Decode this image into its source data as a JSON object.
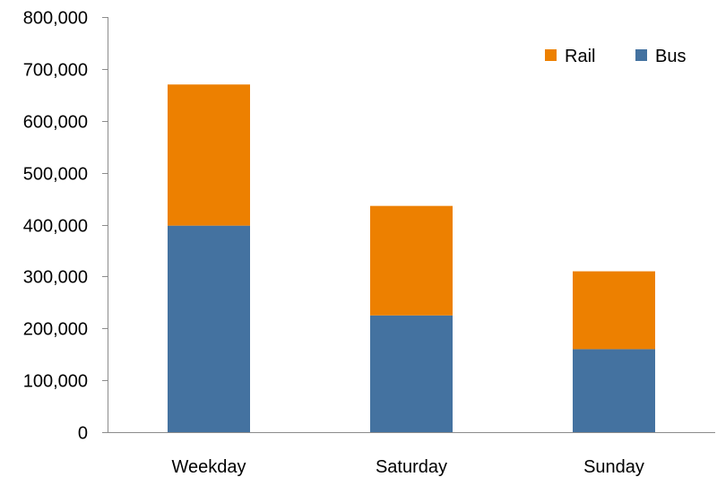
{
  "chart_data": {
    "type": "bar",
    "stacked": true,
    "title": "",
    "xlabel": "",
    "ylabel": "",
    "categories": [
      "Weekday",
      "Saturday",
      "Sunday"
    ],
    "series": [
      {
        "name": "Bus",
        "color": "#4472a0",
        "values": [
          398000,
          225000,
          160000
        ]
      },
      {
        "name": "Rail",
        "color": "#ed8000",
        "values": [
          272000,
          211000,
          150000
        ]
      }
    ],
    "ylim": [
      0,
      800000
    ],
    "yticks": [
      0,
      100000,
      200000,
      300000,
      400000,
      500000,
      600000,
      700000,
      800000
    ],
    "ytick_labels": [
      "0",
      "100,000",
      "200,000",
      "300,000",
      "400,000",
      "500,000",
      "600,000",
      "700,000",
      "800,000"
    ],
    "grid": false,
    "legend": {
      "position": "top-right",
      "order": [
        "Rail",
        "Bus"
      ]
    }
  }
}
